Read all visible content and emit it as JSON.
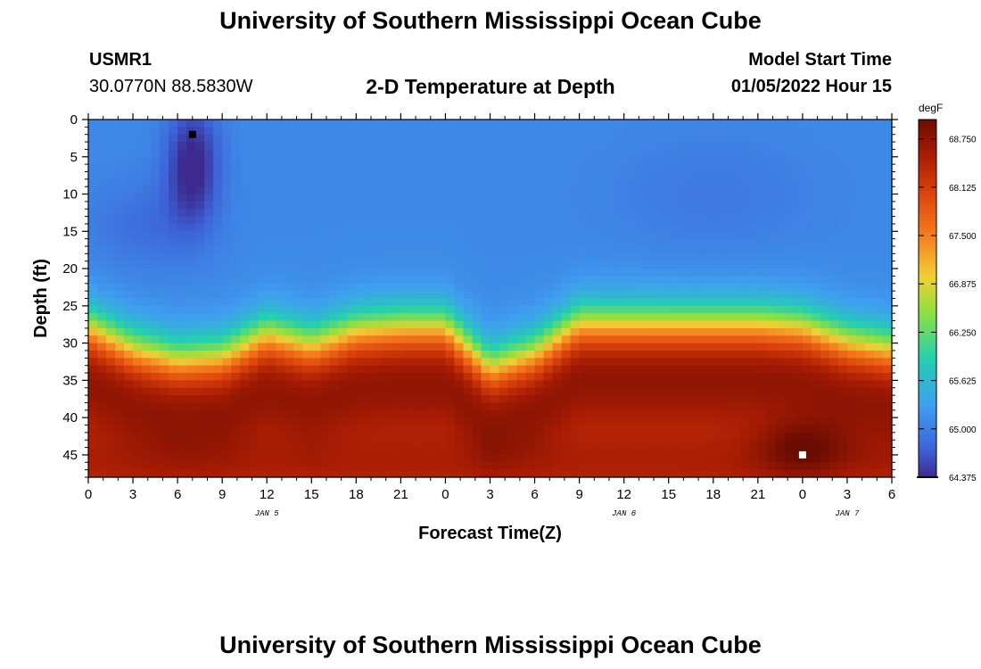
{
  "header": {
    "title": "University of Southern Mississippi Ocean Cube",
    "station_id": "USMR1",
    "coordinates": "30.0770N  88.5830W",
    "plot_title": "2-D Temperature at Depth",
    "model_start_label": "Model Start Time",
    "model_start_value": "01/05/2022 Hour 15"
  },
  "footer": {
    "title": "University of Southern Mississippi Ocean Cube"
  },
  "colors": {
    "cold_marker": "#000000",
    "warm_marker": "#ffffff"
  },
  "chart_data": {
    "type": "heatmap",
    "title": "2-D Temperature at Depth",
    "xlabel": "Forecast Time(Z)",
    "ylabel": "Depth (ft)",
    "x_unit": "hours from 00Z Jan 5",
    "xlim": [
      0,
      54
    ],
    "ylim": [
      0,
      48
    ],
    "y_inverted": true,
    "x_ticks": [
      0,
      3,
      6,
      9,
      12,
      15,
      18,
      21,
      24,
      27,
      30,
      33,
      36,
      39,
      42,
      45,
      48,
      51,
      54
    ],
    "x_tick_labels": [
      "0",
      "3",
      "6",
      "9",
      "12",
      "15",
      "18",
      "21",
      "0",
      "3",
      "6",
      "9",
      "12",
      "15",
      "18",
      "21",
      "0",
      "3",
      "6"
    ],
    "y_ticks": [
      0,
      5,
      10,
      15,
      20,
      25,
      30,
      35,
      40,
      45
    ],
    "y_tick_labels": [
      "0",
      "5",
      "10",
      "15",
      "20",
      "25",
      "30",
      "35",
      "40",
      "45"
    ],
    "date_labels": [
      {
        "x": 12,
        "text": "JAN 5"
      },
      {
        "x": 36,
        "text": "JAN 6"
      },
      {
        "x": 51,
        "text": "JAN 7"
      }
    ],
    "colorbar": {
      "unit": "degF",
      "min": 64.375,
      "max": 69.0,
      "tick_values": [
        68.75,
        68.125,
        67.5,
        66.875,
        66.25,
        65.625,
        65.0,
        64.375
      ],
      "tick_labels": [
        "68.750",
        "68.125",
        "67.500",
        "66.875",
        "66.250",
        "65.625",
        "65.000",
        "64.375"
      ]
    },
    "thermocline_depth": [
      {
        "t": 0,
        "d": 24
      },
      {
        "t": 3,
        "d": 27
      },
      {
        "t": 6,
        "d": 28.5
      },
      {
        "t": 9,
        "d": 28
      },
      {
        "t": 12,
        "d": 25
      },
      {
        "t": 15,
        "d": 26.5
      },
      {
        "t": 18,
        "d": 24.5
      },
      {
        "t": 21,
        "d": 24
      },
      {
        "t": 24,
        "d": 24
      },
      {
        "t": 27,
        "d": 29.5
      },
      {
        "t": 30,
        "d": 27.5
      },
      {
        "t": 33,
        "d": 23.5
      },
      {
        "t": 36,
        "d": 23.5
      },
      {
        "t": 39,
        "d": 23.5
      },
      {
        "t": 42,
        "d": 23.5
      },
      {
        "t": 45,
        "d": 23.5
      },
      {
        "t": 48,
        "d": 24
      },
      {
        "t": 51,
        "d": 26
      },
      {
        "t": 54,
        "d": 27
      }
    ],
    "markers": [
      {
        "label": "minimum",
        "x": 7,
        "y": 2,
        "color": "black"
      },
      {
        "label": "maximum",
        "x": 48,
        "y": 45,
        "color": "white"
      }
    ]
  }
}
